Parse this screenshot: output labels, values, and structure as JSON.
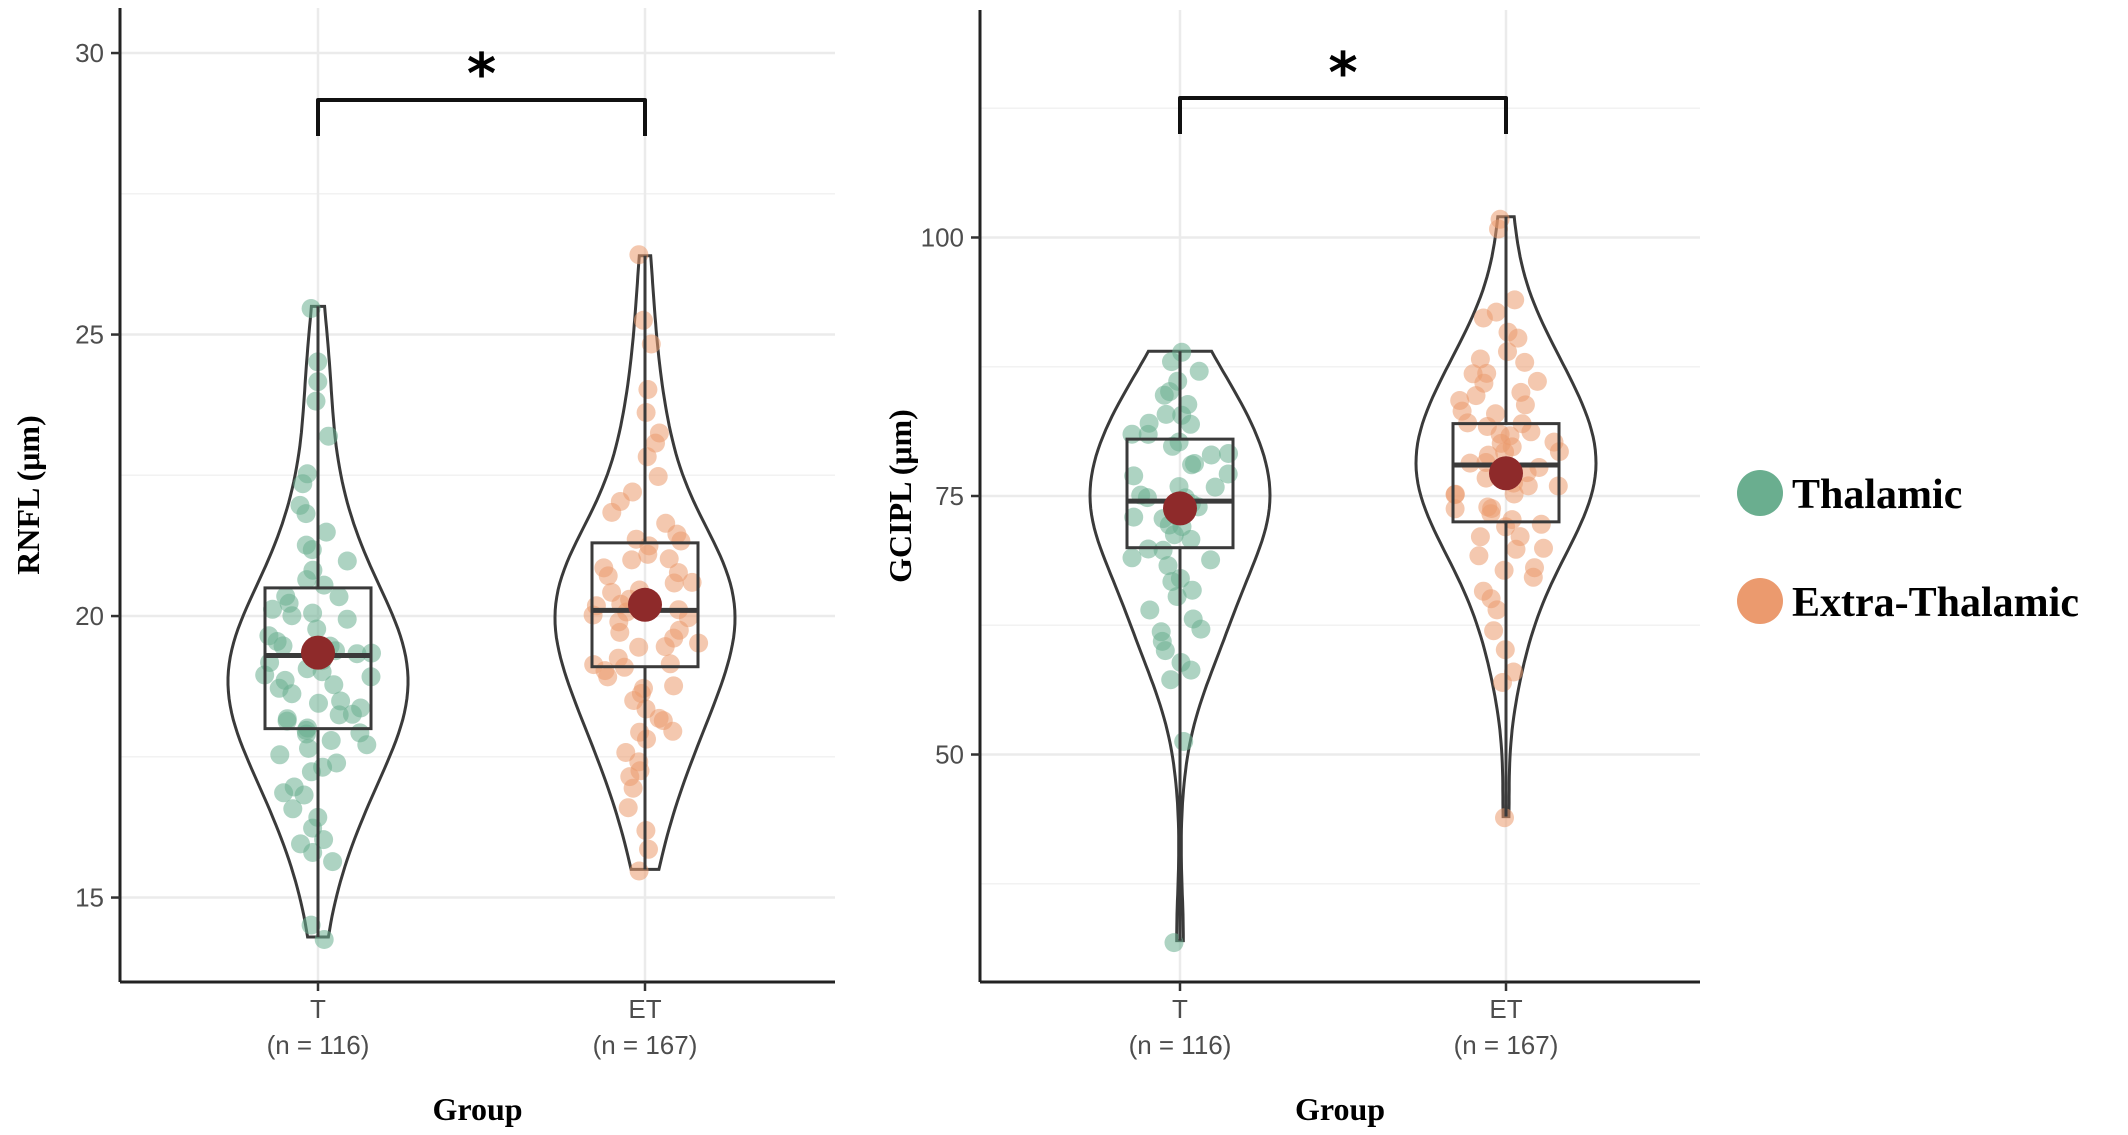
{
  "colors": {
    "thalamic": "#6aae8f",
    "extra_thalamic": "#eb9a6e",
    "mean": "#8e2a2a",
    "outline": "#3a3a3a",
    "grid": "#ebebeb"
  },
  "legend": [
    {
      "label": "Thalamic",
      "color": "#6aae8f"
    },
    {
      "label": "Extra-Thalamic",
      "color": "#eb9a6e"
    }
  ],
  "chart_data": [
    {
      "type": "violin-box",
      "xlabel": "Group",
      "ylabel": "RNFL (μm)",
      "ylim": [
        13.5,
        30.8
      ],
      "yticks": [
        15,
        20,
        25,
        30
      ],
      "grid": true,
      "categories": [
        {
          "code": "T",
          "n_label": "(n = 116)",
          "series": "Thalamic",
          "min": 14.3,
          "q1": 18.0,
          "median": 19.3,
          "q3": 20.5,
          "max": 25.5,
          "mean": 19.35,
          "points": [
            14.3,
            14.5,
            15.6,
            15.8,
            16.0,
            16.0,
            16.2,
            16.4,
            16.6,
            16.8,
            16.9,
            17.0,
            17.2,
            17.3,
            17.4,
            17.5,
            17.6,
            17.7,
            17.8,
            17.9,
            17.9,
            18.0,
            18.0,
            18.1,
            18.2,
            18.2,
            18.3,
            18.4,
            18.5,
            18.5,
            18.6,
            18.7,
            18.8,
            18.9,
            18.9,
            19.0,
            19.0,
            19.1,
            19.2,
            19.2,
            19.3,
            19.3,
            19.4,
            19.5,
            19.5,
            19.6,
            19.7,
            19.8,
            19.9,
            20.0,
            20.0,
            20.1,
            20.2,
            20.3,
            20.4,
            20.5,
            20.6,
            20.8,
            21.0,
            21.2,
            21.3,
            21.5,
            21.8,
            22.0,
            22.3,
            22.5,
            23.2,
            23.8,
            24.2,
            24.5,
            25.5
          ]
        },
        {
          "code": "ET",
          "n_label": "(n = 167)",
          "series": "Extra-Thalamic",
          "min": 15.5,
          "q1": 19.1,
          "median": 20.1,
          "q3": 21.3,
          "max": 26.4,
          "mean": 20.2,
          "points": [
            15.5,
            15.9,
            16.2,
            16.6,
            16.9,
            17.1,
            17.3,
            17.4,
            17.6,
            17.8,
            17.9,
            18.0,
            18.1,
            18.2,
            18.3,
            18.5,
            18.6,
            18.7,
            18.8,
            18.9,
            19.0,
            19.1,
            19.1,
            19.2,
            19.3,
            19.4,
            19.5,
            19.5,
            19.6,
            19.7,
            19.8,
            19.9,
            20.0,
            20.0,
            20.1,
            20.1,
            20.2,
            20.2,
            20.3,
            20.4,
            20.5,
            20.6,
            20.6,
            20.7,
            20.8,
            20.9,
            21.0,
            21.0,
            21.1,
            21.2,
            21.3,
            21.4,
            21.5,
            21.6,
            21.8,
            22.0,
            22.2,
            22.5,
            22.8,
            23.1,
            23.3,
            23.6,
            24.0,
            24.8,
            25.3,
            26.4
          ]
        }
      ],
      "significance": "*"
    },
    {
      "type": "violin-box",
      "xlabel": "Group",
      "ylabel": "GCIPL (μm)",
      "ylim": [
        28,
        122
      ],
      "yticks": [
        50,
        75,
        100
      ],
      "grid": true,
      "categories": [
        {
          "code": "T",
          "n_label": "(n = 116)",
          "series": "Thalamic",
          "min": 32,
          "q1": 70,
          "median": 74.5,
          "q3": 80.5,
          "max": 89,
          "mean": 73.8,
          "points": [
            32,
            51,
            57,
            58,
            59,
            60,
            61,
            62,
            62,
            63,
            64,
            65,
            66,
            67,
            67,
            68,
            69,
            69,
            70,
            70,
            71,
            71,
            72,
            72,
            73,
            73,
            73,
            74,
            74,
            74,
            75,
            75,
            75,
            76,
            76,
            77,
            77,
            78,
            78,
            79,
            79,
            80,
            80,
            81,
            81,
            82,
            82,
            83,
            83,
            84,
            85,
            85,
            86,
            87,
            88,
            89
          ]
        },
        {
          "code": "ET",
          "n_label": "(n = 167)",
          "series": "Extra-Thalamic",
          "min": 44,
          "q1": 72.5,
          "median": 78,
          "q3": 82,
          "max": 102,
          "mean": 77.2,
          "points": [
            44,
            57,
            58,
            60,
            62,
            64,
            65,
            66,
            67,
            68,
            68,
            69,
            70,
            70,
            71,
            71,
            72,
            72,
            73,
            73,
            74,
            74,
            74,
            75,
            75,
            75,
            76,
            76,
            76,
            77,
            77,
            77,
            78,
            78,
            78,
            79,
            79,
            79,
            80,
            80,
            80,
            81,
            81,
            81,
            82,
            82,
            82,
            83,
            83,
            84,
            84,
            85,
            85,
            86,
            86,
            87,
            87,
            88,
            88,
            89,
            90,
            91,
            92,
            93,
            94,
            101,
            102
          ]
        }
      ],
      "significance": "*"
    }
  ]
}
